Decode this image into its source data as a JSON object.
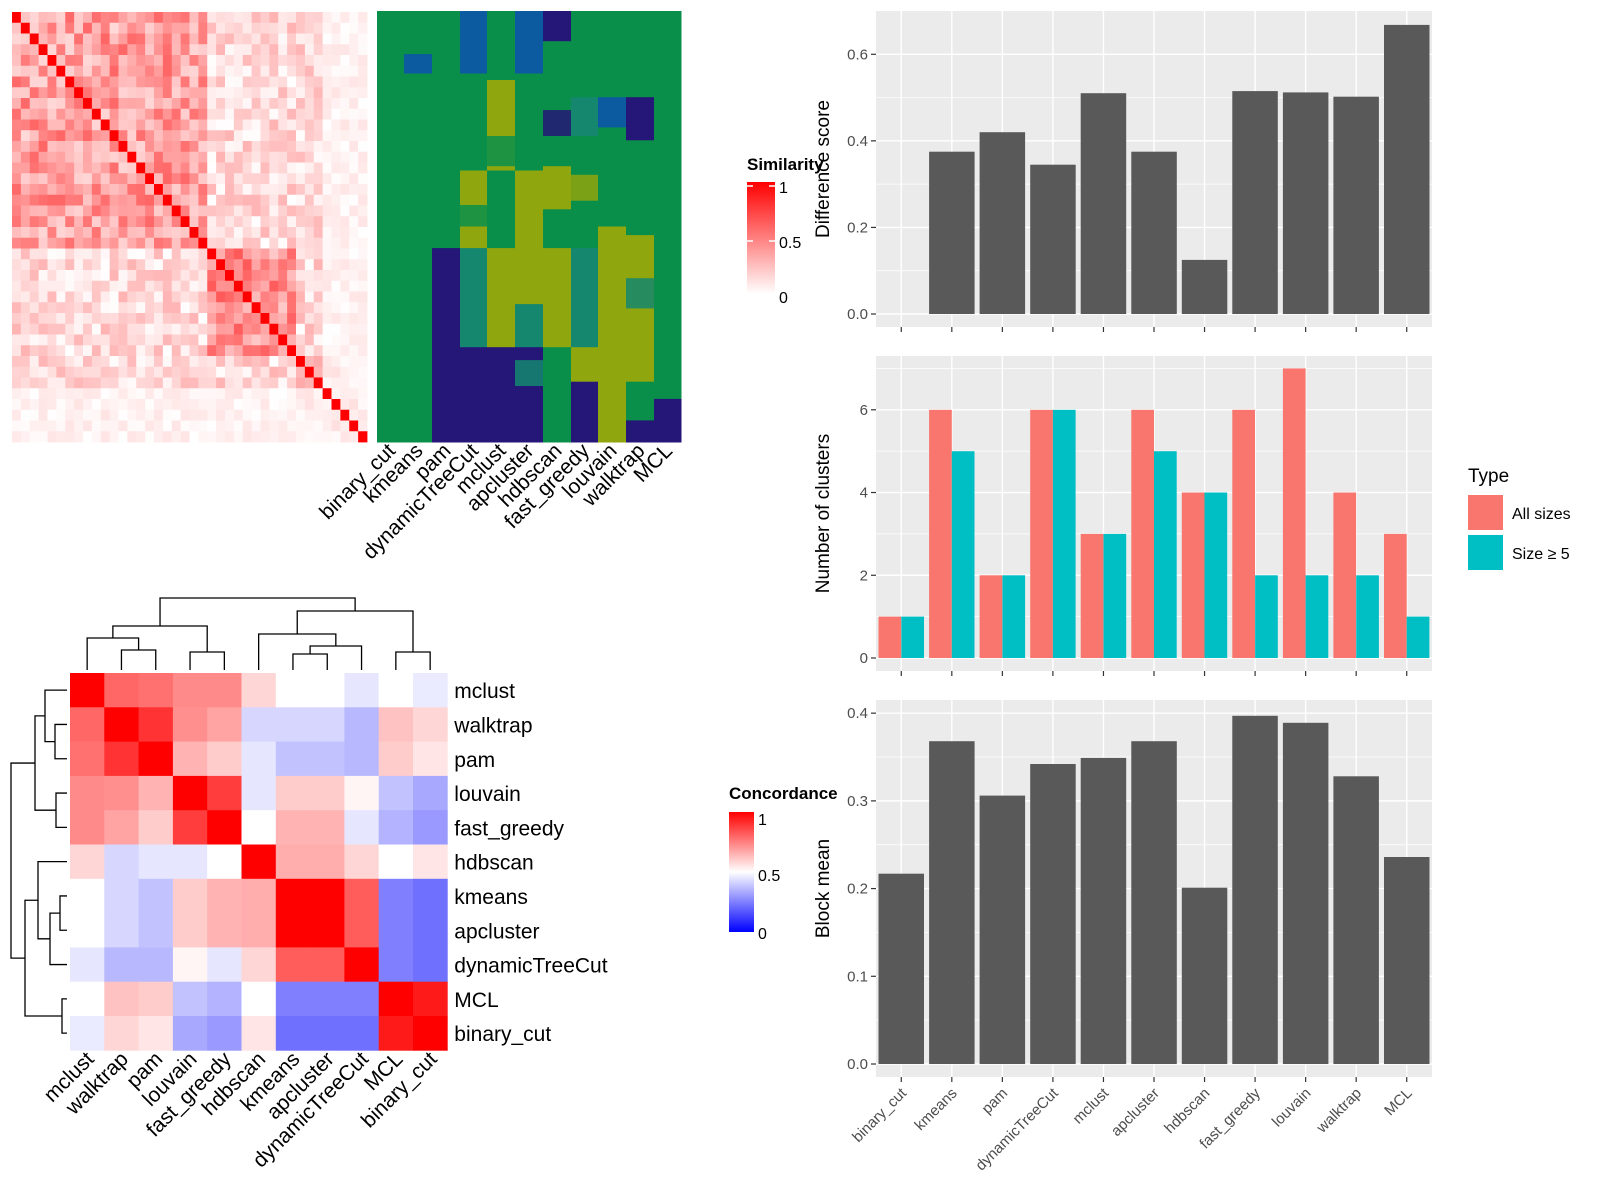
{
  "methods_order": [
    "binary_cut",
    "kmeans",
    "pam",
    "dynamicTreeCut",
    "mclust",
    "apcluster",
    "hdbscan",
    "fast_greedy",
    "louvain",
    "walktrap",
    "MCL"
  ],
  "colors": {
    "panel_bg": "#EBEBEB",
    "grid": "#FFFFFF",
    "bar": "#595959",
    "all_sizes": "#F8766D",
    "size5": "#00BFC4",
    "sim_high": "#FF0000",
    "sim_low": "#FFFFFF",
    "conc_low": "#0000FF",
    "conc_mid": "#FFFFFF",
    "conc_high": "#FF0000",
    "cl_green": "#0A8F4A",
    "cl_olive": "#8FA60E",
    "cl_teal": "#14876E",
    "cl_navy": "#241777",
    "cl_blue": "#0C5AA0"
  },
  "similarity_heatmap": {
    "legend_title": "Similarity",
    "legend_ticks": [
      "1",
      "0.5",
      "0"
    ],
    "n_terms": 40,
    "partition_labels": [
      "binary_cut",
      "kmeans",
      "pam",
      "dynamicTreeCut",
      "mclust",
      "apcluster",
      "hdbscan",
      "fast_greedy",
      "louvain",
      "walktrap",
      "MCL"
    ]
  },
  "concordance_heatmap": {
    "legend_title": "Concordance",
    "legend_ticks": [
      "1",
      "0.5",
      "0"
    ],
    "row_labels": [
      "mclust",
      "walktrap",
      "pam",
      "louvain",
      "fast_greedy",
      "hdbscan",
      "kmeans",
      "apcluster",
      "dynamicTreeCut",
      "MCL",
      "binary_cut"
    ],
    "col_labels": [
      "mclust",
      "walktrap",
      "pam",
      "louvain",
      "fast_greedy",
      "hdbscan",
      "kmeans",
      "apcluster",
      "dynamicTreeCut",
      "MCL",
      "binary_cut"
    ],
    "matrix": [
      [
        1.0,
        0.8,
        0.78,
        0.73,
        0.73,
        0.58,
        0.5,
        0.5,
        0.45,
        0.5,
        0.46
      ],
      [
        0.8,
        1.0,
        0.9,
        0.72,
        0.68,
        0.42,
        0.42,
        0.42,
        0.36,
        0.62,
        0.58
      ],
      [
        0.78,
        0.9,
        1.0,
        0.65,
        0.6,
        0.45,
        0.38,
        0.38,
        0.36,
        0.6,
        0.55
      ],
      [
        0.73,
        0.72,
        0.65,
        1.0,
        0.88,
        0.45,
        0.6,
        0.6,
        0.52,
        0.38,
        0.33
      ],
      [
        0.73,
        0.68,
        0.6,
        0.88,
        1.0,
        0.5,
        0.65,
        0.65,
        0.45,
        0.35,
        0.3
      ],
      [
        0.58,
        0.42,
        0.45,
        0.45,
        0.5,
        1.0,
        0.66,
        0.66,
        0.58,
        0.5,
        0.55
      ],
      [
        0.5,
        0.42,
        0.38,
        0.6,
        0.65,
        0.66,
        1.0,
        1.0,
        0.82,
        0.25,
        0.22
      ],
      [
        0.5,
        0.42,
        0.38,
        0.6,
        0.65,
        0.66,
        1.0,
        1.0,
        0.82,
        0.25,
        0.22
      ],
      [
        0.45,
        0.36,
        0.36,
        0.52,
        0.45,
        0.58,
        0.82,
        0.82,
        1.0,
        0.25,
        0.22
      ],
      [
        0.5,
        0.62,
        0.6,
        0.38,
        0.35,
        0.5,
        0.25,
        0.25,
        0.25,
        1.0,
        0.95
      ],
      [
        0.46,
        0.58,
        0.55,
        0.33,
        0.3,
        0.55,
        0.22,
        0.22,
        0.22,
        0.95,
        1.0
      ]
    ]
  },
  "chart_data": [
    {
      "type": "bar",
      "categories": [
        "binary_cut",
        "kmeans",
        "pam",
        "dynamicTreeCut",
        "mclust",
        "apcluster",
        "hdbscan",
        "fast_greedy",
        "louvain",
        "walktrap",
        "MCL"
      ],
      "values": [
        0.0,
        0.375,
        0.42,
        0.345,
        0.51,
        0.375,
        0.125,
        0.515,
        0.512,
        0.502,
        0.668
      ],
      "title": "",
      "xlabel": "",
      "ylabel": "Difference score",
      "ylim": [
        0,
        0.7
      ],
      "yticks": [
        "0.0",
        "0.2",
        "0.4",
        "0.6"
      ],
      "grid": true
    },
    {
      "type": "bar",
      "categories": [
        "binary_cut",
        "kmeans",
        "pam",
        "dynamicTreeCut",
        "mclust",
        "apcluster",
        "hdbscan",
        "fast_greedy",
        "louvain",
        "walktrap",
        "MCL"
      ],
      "series": [
        {
          "name": "All sizes",
          "values": [
            1,
            6,
            2,
            6,
            3,
            6,
            4,
            6,
            7,
            4,
            3
          ]
        },
        {
          "name": "Size ≥ 5",
          "values": [
            1,
            5,
            2,
            6,
            3,
            5,
            4,
            2,
            2,
            2,
            1
          ]
        }
      ],
      "title": "",
      "xlabel": "",
      "ylabel": "Number of clusters",
      "ylim": [
        0,
        7.3
      ],
      "yticks": [
        "0",
        "2",
        "4",
        "6"
      ],
      "legend_title": "Type",
      "legend_position": "right",
      "grid": true
    },
    {
      "type": "bar",
      "categories": [
        "binary_cut",
        "kmeans",
        "pam",
        "dynamicTreeCut",
        "mclust",
        "apcluster",
        "hdbscan",
        "fast_greedy",
        "louvain",
        "walktrap",
        "MCL"
      ],
      "values": [
        0.217,
        0.368,
        0.306,
        0.342,
        0.349,
        0.368,
        0.201,
        0.397,
        0.389,
        0.328,
        0.236
      ],
      "title": "",
      "xlabel": "",
      "ylabel": "Block mean",
      "ylim": [
        0,
        0.415
      ],
      "yticks": [
        "0.0",
        "0.1",
        "0.2",
        "0.3",
        "0.4"
      ],
      "grid": true
    }
  ]
}
